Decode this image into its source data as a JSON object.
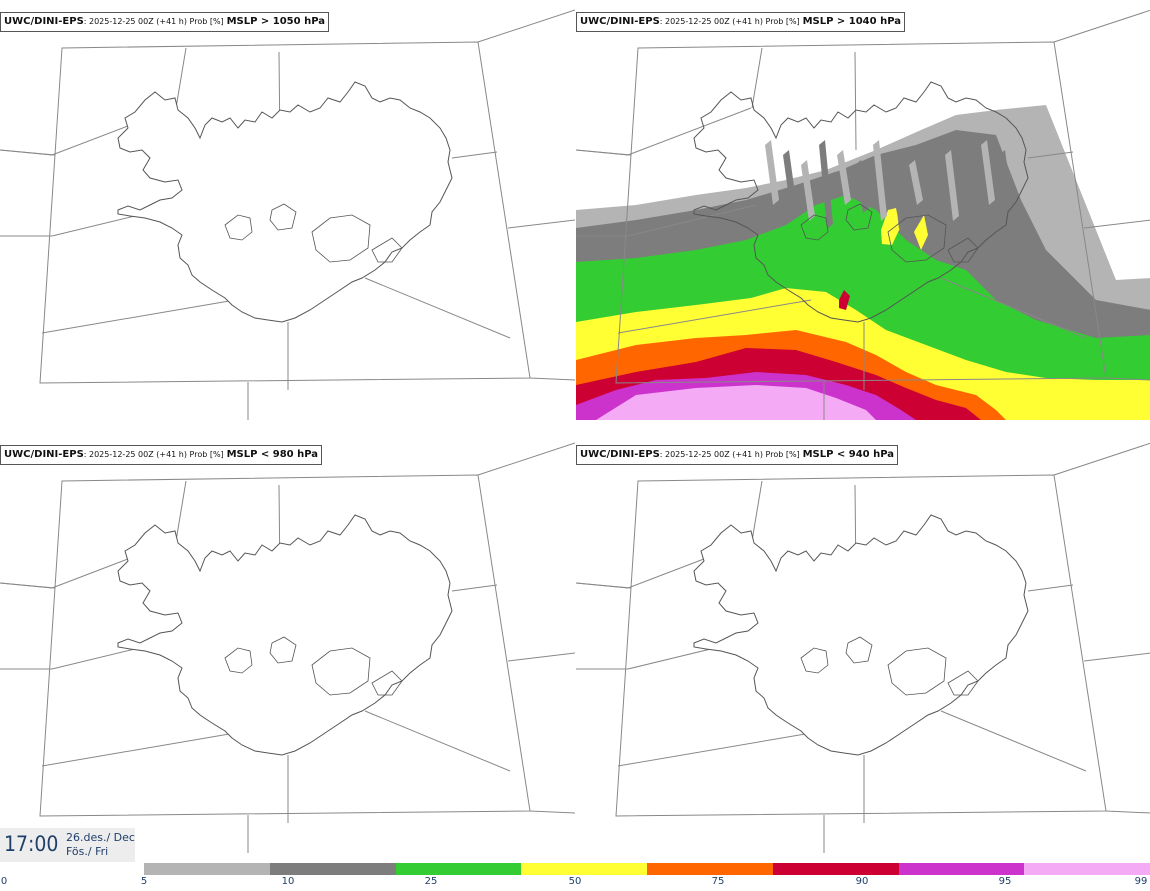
{
  "panels": [
    {
      "model": "UWC/DINI-EPS",
      "meta": ": 2025-12-25 00Z (+41 h) Prob [%]",
      "param": "MSLP > 1050 hPa",
      "has_prob": false
    },
    {
      "model": "UWC/DINI-EPS",
      "meta": ": 2025-12-25 00Z (+41 h) Prob [%]",
      "param": "MSLP > 1040 hPa",
      "has_prob": true
    },
    {
      "model": "UWC/DINI-EPS",
      "meta": ": 2025-12-25 00Z (+41 h) Prob [%]",
      "param": "MSLP < 980 hPa",
      "has_prob": false
    },
    {
      "model": "UWC/DINI-EPS",
      "meta": ": 2025-12-25 00Z (+41 h) Prob [%]",
      "param": "MSLP < 940 hPa",
      "has_prob": false
    }
  ],
  "time": {
    "hour": "17:00",
    "date_line": "26.des./ Dec",
    "day_line": "Fös./ Fri"
  },
  "legend": {
    "ticks": [
      "0",
      "5",
      "10",
      "25",
      "50",
      "75",
      "90",
      "95",
      "99"
    ],
    "colors": [
      "#b4b4b4",
      "#7d7d7d",
      "#33cc33",
      "#ffff33",
      "#ff6600",
      "#cc0033",
      "#cc33cc",
      "#f5aaf5"
    ]
  },
  "map": {
    "land_color": "#ffffff",
    "coast_color": "#555555",
    "grid_color": "#888888"
  }
}
